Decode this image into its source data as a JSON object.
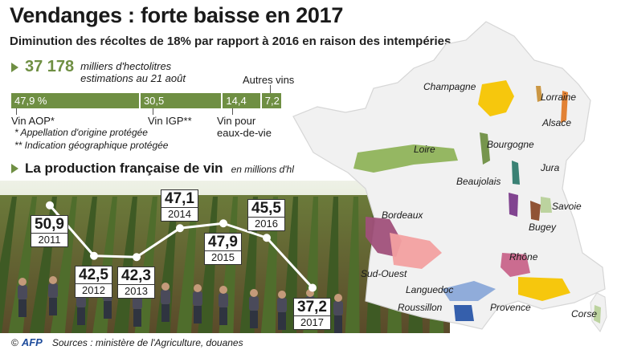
{
  "header": {
    "title": "Vendanges : forte baisse en 2017",
    "subtitle": "Diminution des récoltes de 18% par rapport à 2016 en raison des intempéries"
  },
  "total": {
    "value": "37 178",
    "unit_line1": "milliers d'hectolitres",
    "unit_line2": "estimations au 21 août"
  },
  "breakdown": {
    "segments": [
      {
        "value": "47,9 %",
        "share": 47.9,
        "label": "Vin AOP*"
      },
      {
        "value": "30,5",
        "share": 30.5,
        "label": "Vin IGP**"
      },
      {
        "value": "14,4",
        "share": 14.4,
        "label_line1": "Vin pour",
        "label_line2": "eaux-de-vie"
      },
      {
        "value": "7,2",
        "share": 7.2,
        "label": "Autres vins"
      }
    ],
    "footnote1": "* Appellation d'origine protégée",
    "footnote2": "** Indication géographique protégée"
  },
  "production": {
    "title": "La production française de vin",
    "unit": "en millions d'hl"
  },
  "chart_data": {
    "type": "line",
    "title": "La production française de vin",
    "ylabel": "en millions d'hl",
    "categories": [
      "2011",
      "2012",
      "2013",
      "2014",
      "2015",
      "2016",
      "2017"
    ],
    "values": [
      50.9,
      42.5,
      42.3,
      47.1,
      47.9,
      45.5,
      37.2
    ],
    "value_labels": [
      "50,9",
      "42,5",
      "42,3",
      "47,1",
      "47,9",
      "45,5",
      "37,2"
    ],
    "line_color": "#ffffff"
  },
  "map": {
    "regions": [
      "Champagne",
      "Lorraine",
      "Alsace",
      "Loire",
      "Bourgogne",
      "Jura",
      "Beaujolais",
      "Savoie",
      "Bugey",
      "Bordeaux",
      "Rhône",
      "Sud-Ouest",
      "Languedoc",
      "Provence",
      "Roussillon",
      "Corse"
    ],
    "colors": {
      "champagne": "#f5c400",
      "lorraine": "#c8913a",
      "alsace": "#e07b2a",
      "loire": "#8fb35a",
      "bourgogne": "#6f8f43",
      "jura": "#2f7a6d",
      "beaujolais": "#7a3a8a",
      "savoie": "#b8d19a",
      "bugey": "#8a4a2a",
      "bordeaux": "#a0507a",
      "rhone": "#c8648a",
      "sudouest": "#f2a0a0",
      "languedoc": "#8aa8d8",
      "roussillon": "#2a56a8",
      "provence": "#f5c400",
      "corse": "#b8d19a"
    }
  },
  "source": {
    "copyright": "©",
    "agency": "AFP",
    "text": "Sources : ministère de l'Agriculture, douanes"
  }
}
